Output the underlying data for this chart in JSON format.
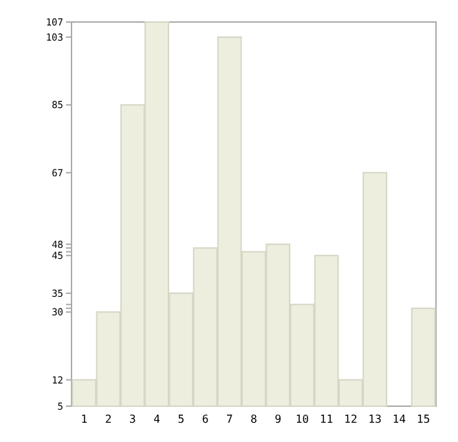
{
  "chart_data": {
    "type": "bar",
    "categories": [
      "1",
      "2",
      "3",
      "4",
      "5",
      "6",
      "7",
      "8",
      "9",
      "10",
      "11",
      "12",
      "13",
      "14",
      "15"
    ],
    "values": [
      12,
      30,
      85,
      107,
      35,
      47,
      103,
      46,
      48,
      32,
      45,
      12,
      67,
      5,
      31
    ],
    "color": "#eeeedf",
    "ylim": [
      5,
      107
    ],
    "yticks": [
      5,
      12,
      30,
      {
        "value": 31,
        "label": null
      },
      {
        "value": 32,
        "label": null
      },
      35,
      45,
      {
        "value": 46,
        "label": null
      },
      {
        "value": 47,
        "label": null
      },
      48,
      67,
      85,
      103,
      107
    ],
    "grid": false
  }
}
